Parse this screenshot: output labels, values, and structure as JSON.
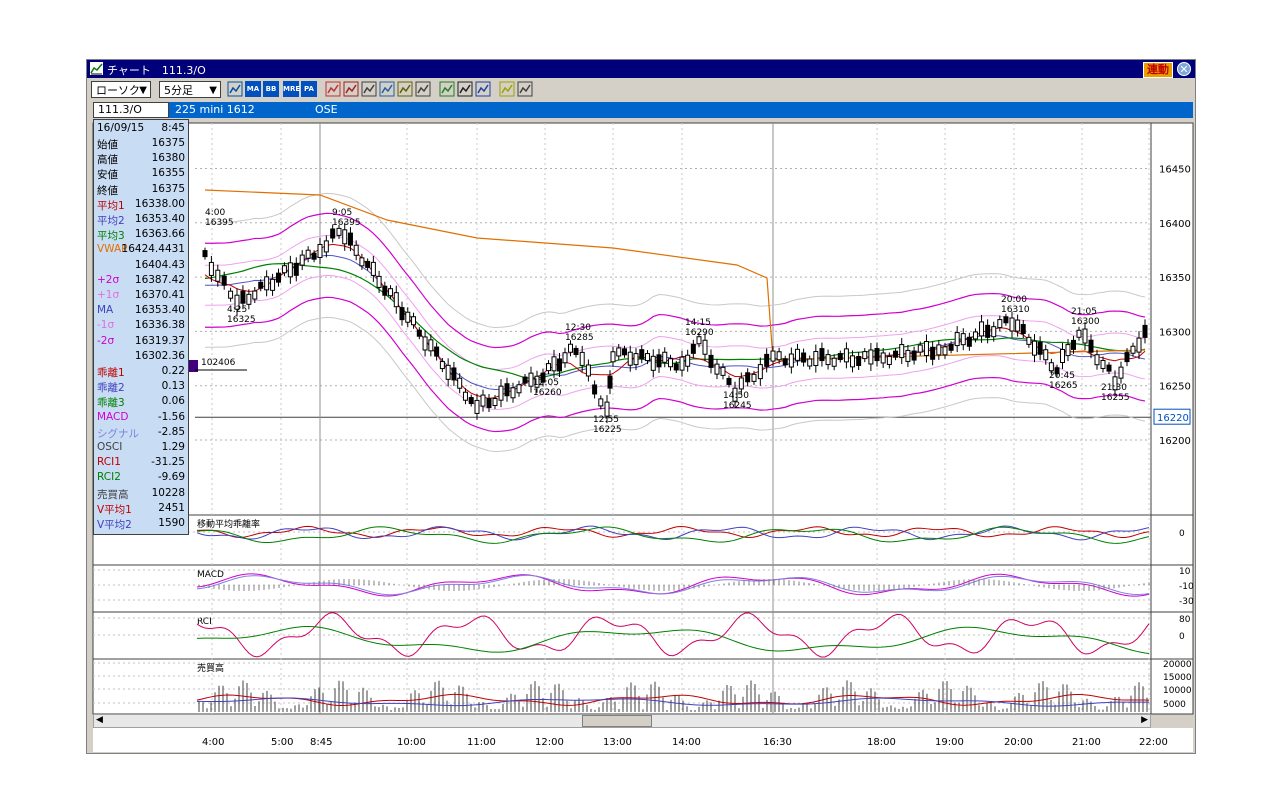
{
  "window": {
    "title": "チャート　111.3/O",
    "link_label": "連動",
    "close_label": "✕"
  },
  "toolbar": {
    "chart_type": "ローソク",
    "interval": "5分足",
    "icons": [
      "chart-settings-icon",
      "ma-icon",
      "bb-icon",
      "mre-icon",
      "pa-icon",
      "line-chart-icon",
      "candle-icon",
      "indicator-icon",
      "zoom-icon",
      "grid-icon",
      "ruler-icon",
      "pen-icon",
      "pointer-icon",
      "eraser-icon",
      "search-icon",
      "trend-icon"
    ],
    "icon_labels": {
      "ma": "MA",
      "bb": "BB",
      "mre": "MRE",
      "pa": "PA"
    }
  },
  "infobar": {
    "symbol": "111.3/O",
    "name": "225 mini 1612",
    "exchange": "OSE"
  },
  "panel": {
    "date": "16/09/15",
    "time": "8:45",
    "rows": [
      {
        "label": "始値",
        "value": "16375",
        "color": "#000000"
      },
      {
        "label": "高値",
        "value": "16380",
        "color": "#000000"
      },
      {
        "label": "安値",
        "value": "16355",
        "color": "#000000"
      },
      {
        "label": "終値",
        "value": "16375",
        "color": "#000000"
      },
      {
        "label": "平均1",
        "value": "16338.00",
        "color": "#c00000"
      },
      {
        "label": "平均2",
        "value": "16353.40",
        "color": "#4040c0"
      },
      {
        "label": "平均3",
        "value": "16363.66",
        "color": "#008000"
      },
      {
        "label": "VWAP",
        "value": "16424.4431",
        "color": "#e07000"
      },
      {
        "label": "",
        "value": "16404.43",
        "color": "#000000"
      },
      {
        "label": "+2σ",
        "value": "16387.42",
        "color": "#d000d0"
      },
      {
        "label": "+1σ",
        "value": "16370.41",
        "color": "#e070e0"
      },
      {
        "label": "MA",
        "value": "16353.40",
        "color": "#4040c0"
      },
      {
        "label": "-1σ",
        "value": "16336.38",
        "color": "#e070e0"
      },
      {
        "label": "-2σ",
        "value": "16319.37",
        "color": "#d000d0"
      },
      {
        "label": "",
        "value": "16302.36",
        "color": "#000000"
      },
      {
        "label": "乖離1",
        "value": "0.22",
        "color": "#c00000"
      },
      {
        "label": "乖離2",
        "value": "0.13",
        "color": "#4040c0"
      },
      {
        "label": "乖離3",
        "value": "0.06",
        "color": "#008000"
      },
      {
        "label": "MACD",
        "value": "-1.56",
        "color": "#d000d0"
      },
      {
        "label": "シグナル",
        "value": "-2.85",
        "color": "#8080e0"
      },
      {
        "label": "OSCI",
        "value": "1.29",
        "color": "#404040"
      },
      {
        "label": "RCI1",
        "value": "-31.25",
        "color": "#c00000"
      },
      {
        "label": "RCI2",
        "value": "-9.69",
        "color": "#008000"
      },
      {
        "label": "売買高",
        "value": "10228",
        "color": "#404040"
      },
      {
        "label": "V平均1",
        "value": "2451",
        "color": "#c00000"
      },
      {
        "label": "V平均2",
        "value": "1590",
        "color": "#4040c0"
      }
    ]
  },
  "price_axis": {
    "ticks": [
      "16450",
      "16400",
      "16350",
      "16300",
      "16250",
      "16200"
    ],
    "current_price": "16220"
  },
  "annotations": [
    {
      "time": "4:00",
      "price": "16395"
    },
    {
      "time": "4:25",
      "price": "16325"
    },
    {
      "time": "9:05",
      "price": "16395"
    },
    {
      "time": "12:30",
      "price": "16285"
    },
    {
      "time": "12:05",
      "price": "16260"
    },
    {
      "time": "12:55",
      "price": "16225"
    },
    {
      "time": "14:15",
      "price": "16290"
    },
    {
      "time": "14:50",
      "price": "16245"
    },
    {
      "time": "20:00",
      "price": "16310"
    },
    {
      "time": "20:45",
      "price": "16265"
    },
    {
      "time": "21:05",
      "price": "16300"
    },
    {
      "time": "21:30",
      "price": "16255"
    }
  ],
  "cursor_volume_label": "102406",
  "subpanels": {
    "divergence": {
      "title": "移動平均乖離率",
      "ticks": [
        "0"
      ]
    },
    "macd": {
      "title": "MACD",
      "ticks": [
        "10",
        "-10",
        "-30"
      ]
    },
    "rci": {
      "title": "RCI",
      "ticks": [
        "80",
        "0"
      ]
    },
    "volume": {
      "title": "売買高",
      "ticks": [
        "20000",
        "15000",
        "10000",
        "5000"
      ]
    }
  },
  "time_axis": [
    "4:00",
    "5:00",
    "8:45",
    "10:00",
    "11:00",
    "12:00",
    "13:00",
    "14:00",
    "16:30",
    "18:00",
    "19:00",
    "20:00",
    "21:00",
    "22:00"
  ],
  "colors": {
    "title_bar": "#00007b",
    "info_bar": "#0066cc",
    "panel_bg": "#c8dcf4",
    "candle": "#000000"
  },
  "chart_data": {
    "type": "line",
    "series_note": "",
    "x": [
      "4:00",
      "4:25",
      "8:45",
      "9:05",
      "10:00",
      "11:00",
      "12:05",
      "12:30",
      "12:55",
      "13:00",
      "14:00",
      "14:15",
      "14:50",
      "16:30",
      "18:00",
      "19:00",
      "20:00",
      "20:45",
      "21:05",
      "21:30",
      "22:00"
    ],
    "close": [
      16370,
      16325,
      16375,
      16395,
      16320,
      16230,
      16260,
      16285,
      16225,
      16280,
      16270,
      16290,
      16245,
      16275,
      16275,
      16285,
      16310,
      16265,
      16300,
      16255,
      16300
    ],
    "ylim": [
      16150,
      16490
    ]
  }
}
